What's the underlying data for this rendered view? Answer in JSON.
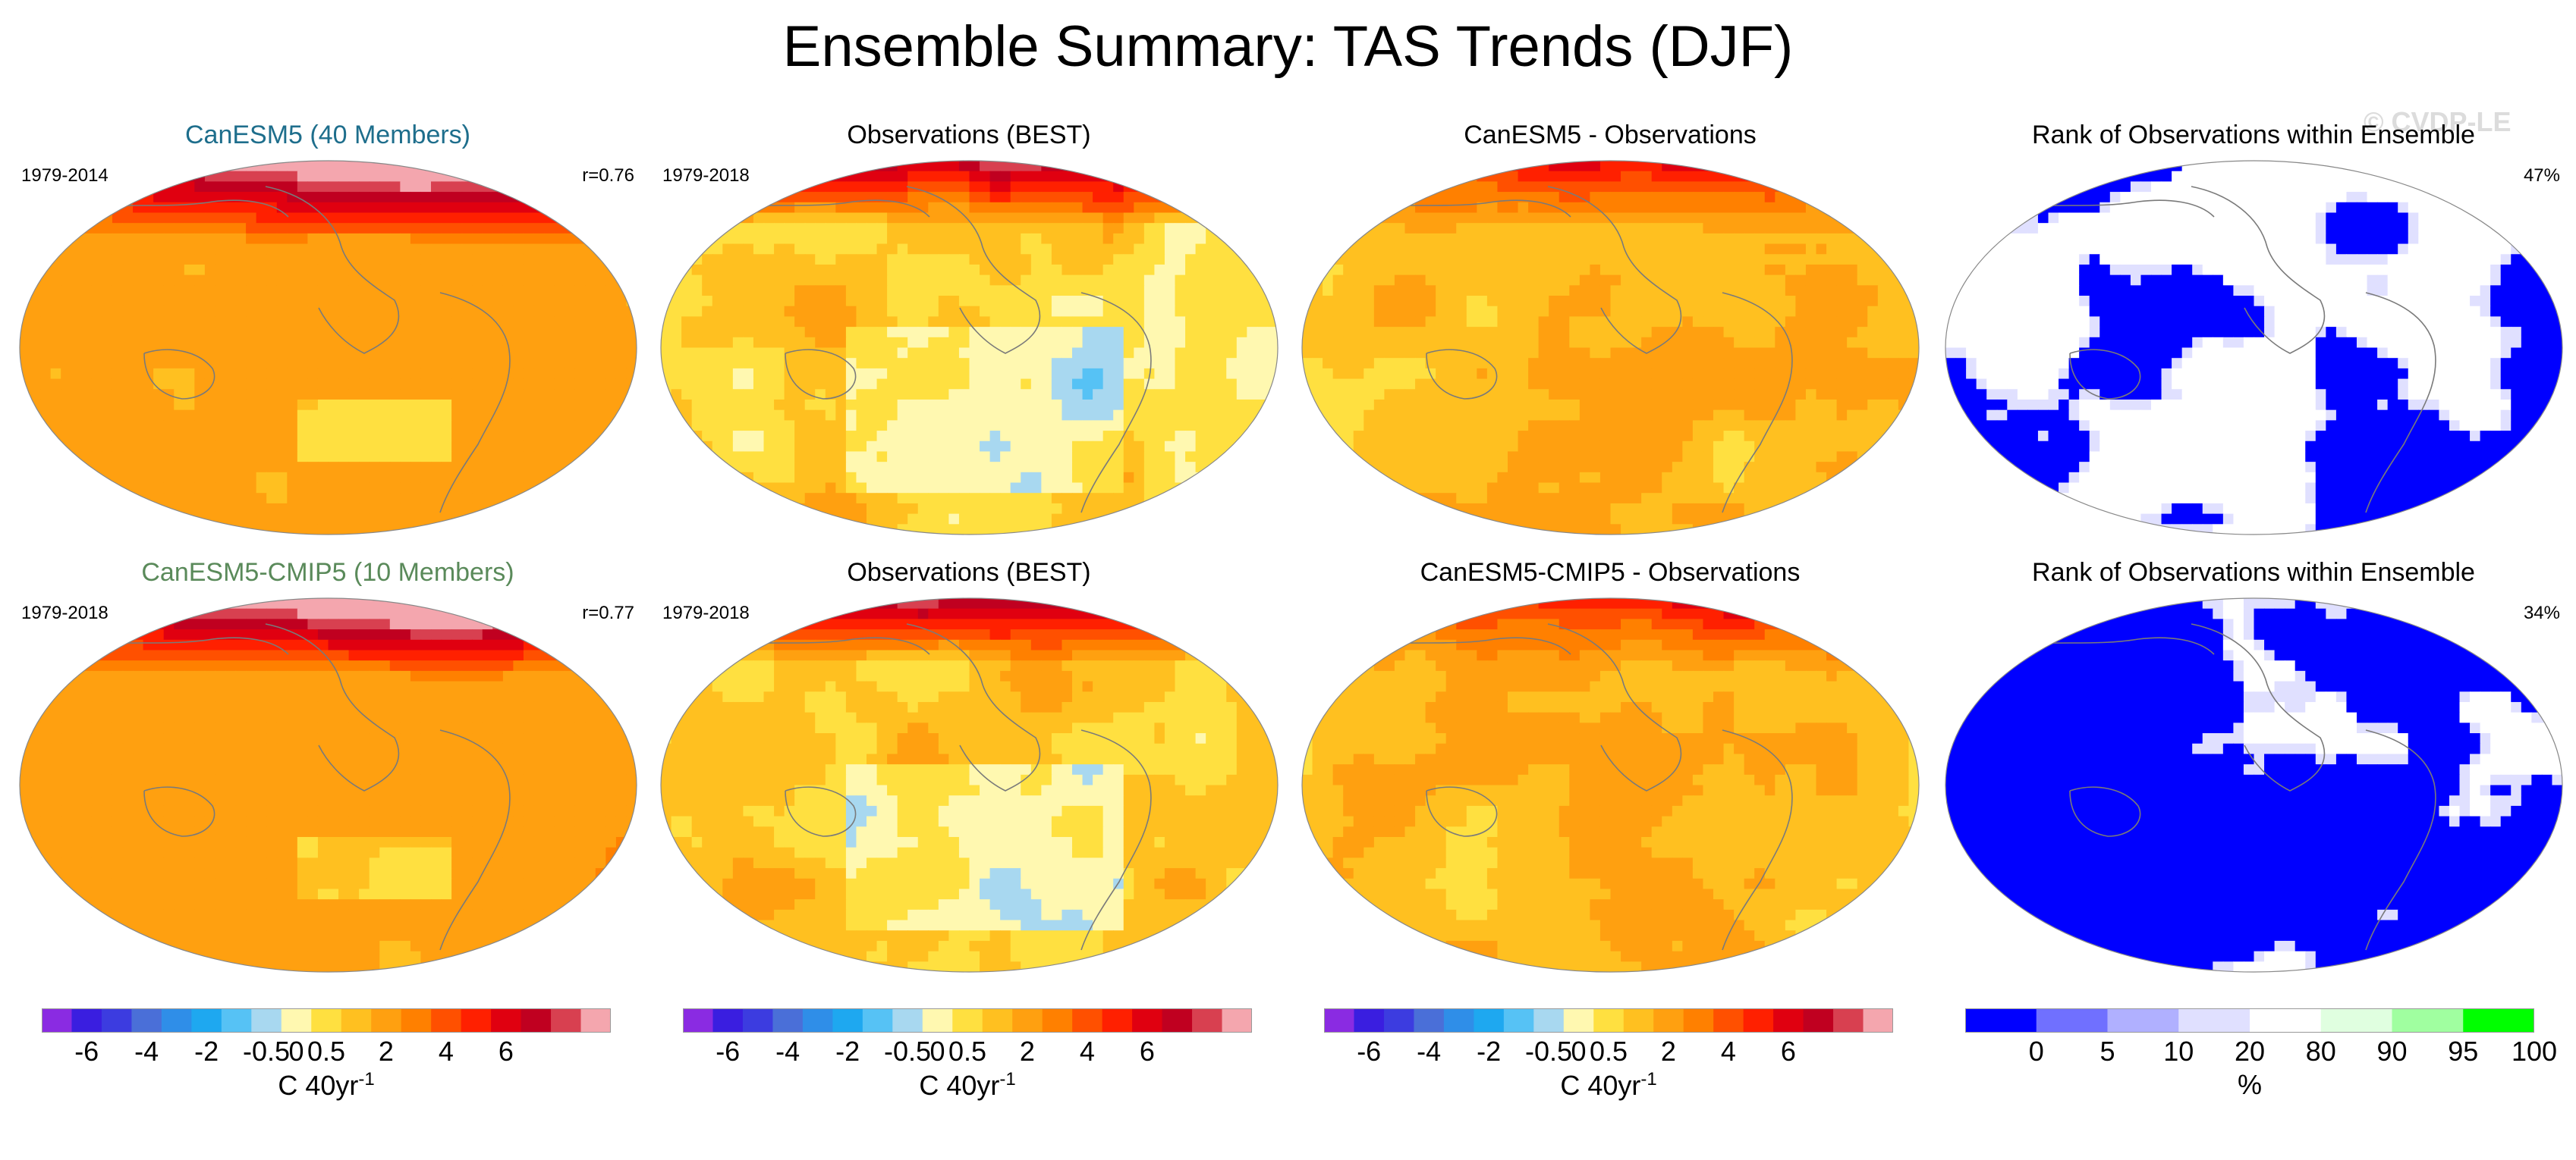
{
  "chart_data": {
    "type": "heatmap",
    "title": "Ensemble Summary: TAS Trends (DJF)",
    "watermark": "© CVDP-LE",
    "panels": [
      {
        "title": "CanESM5 (40 Members)",
        "title_color": "#1e6e8c",
        "years": "1979-2014",
        "stat": "r=0.76",
        "kind": "model",
        "pattern": 0
      },
      {
        "title": "Observations (BEST)",
        "title_color": "#000000",
        "years": "1979-2018",
        "stat": "",
        "kind": "obs",
        "pattern": 1
      },
      {
        "title": "CanESM5 - Observations",
        "title_color": "#000000",
        "years": "",
        "stat": "",
        "kind": "diff",
        "pattern": 2
      },
      {
        "title": "Rank of Observations within Ensemble",
        "title_color": "#000000",
        "years": "",
        "stat": "47%",
        "kind": "rank",
        "pattern": 3
      },
      {
        "title": "CanESM5-CMIP5 (10 Members)",
        "title_color": "#5a8a5a",
        "years": "1979-2018",
        "stat": "r=0.77",
        "kind": "model",
        "pattern": 4
      },
      {
        "title": "Observations (BEST)",
        "title_color": "#000000",
        "years": "1979-2018",
        "stat": "",
        "kind": "obs",
        "pattern": 5
      },
      {
        "title": "CanESM5-CMIP5 - Observations",
        "title_color": "#000000",
        "years": "",
        "stat": "",
        "kind": "diff",
        "pattern": 6
      },
      {
        "title": "Rank of Observations within Ensemble",
        "title_color": "#000000",
        "years": "",
        "stat": "34%",
        "kind": "rank",
        "pattern": 7
      }
    ],
    "temperature_colorbar": {
      "colors": [
        "#8a2be2",
        "#3a1ee0",
        "#3c3ce0",
        "#4a6fd8",
        "#2f8ee8",
        "#1ea8f0",
        "#56c2f5",
        "#a8d8f0",
        "#fff8b0",
        "#ffe040",
        "#ffc020",
        "#ffa010",
        "#ff8000",
        "#ff5000",
        "#ff2000",
        "#e00010",
        "#c00020",
        "#d84050",
        "#f4a6ae"
      ],
      "ticks": [
        "-6",
        "-4",
        "-2",
        "-0.5",
        "0",
        "0.5",
        "2",
        "4",
        "6"
      ],
      "tick_positions": [
        1.5,
        3.5,
        5.5,
        7.5,
        8.5,
        9.5,
        11.5,
        13.5,
        15.5
      ],
      "label": "C 40yr",
      "label_exponent": "-1"
    },
    "rank_colorbar": {
      "colors": [
        "#0000ff",
        "#7070ff",
        "#b0b0ff",
        "#e0e0ff",
        "#ffffff",
        "#e0ffe0",
        "#a0ffa0",
        "#00ff00"
      ],
      "boundaries_units": [
        0,
        5,
        10,
        20,
        80,
        90,
        95,
        100
      ],
      "ticks": [
        "0",
        "5",
        "10",
        "20",
        "80",
        "90",
        "95",
        "100"
      ],
      "tick_positions": [
        1,
        2,
        3,
        4,
        5,
        6,
        7,
        8
      ],
      "label": "%"
    }
  }
}
